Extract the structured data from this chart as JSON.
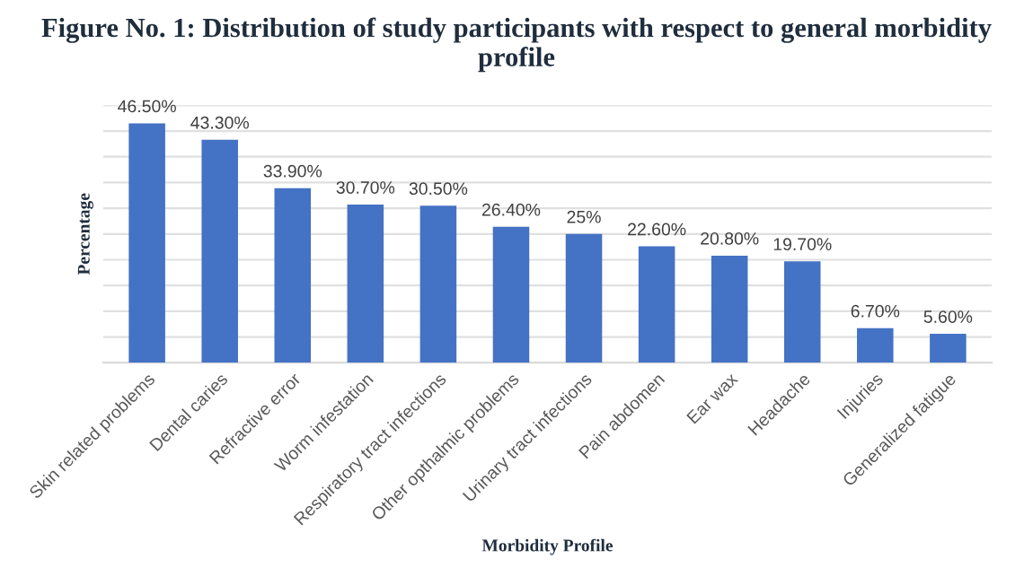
{
  "chart_data": {
    "type": "bar",
    "title": "Figure No. 1: Distribution of study participants with respect to general morbidity profile",
    "xlabel": "Morbidity Profile",
    "ylabel": "Percentage",
    "categories": [
      "Skin related problems",
      "Dental caries",
      "Refractive error",
      "Worm infestation",
      "Respiratory tract infections",
      "Other opthalmic problems",
      "Urinary tract infections",
      "Pain abdomen",
      "Ear wax",
      "Headache",
      "Injuries",
      "Generalized fatigue"
    ],
    "values": [
      46.5,
      43.3,
      33.9,
      30.7,
      30.5,
      26.4,
      25,
      22.6,
      20.8,
      19.7,
      6.7,
      5.6
    ],
    "value_labels": [
      "46.50%",
      "43.30%",
      "33.90%",
      "30.70%",
      "30.50%",
      "26.40%",
      "25%",
      "22.60%",
      "20.80%",
      "19.70%",
      "6.70%",
      "5.60%"
    ],
    "color": "#4472c4",
    "ylim": [
      0,
      50
    ],
    "yticks": [
      {
        "value": 0,
        "label": null
      },
      {
        "value": 5,
        "label": null
      },
      {
        "value": 10,
        "label": null
      },
      {
        "value": 15,
        "label": null
      },
      {
        "value": 20,
        "label": null
      },
      {
        "value": 25,
        "label": null
      },
      {
        "value": 30,
        "label": null
      },
      {
        "value": 35,
        "label": null
      },
      {
        "value": 40,
        "label": null
      },
      {
        "value": 45,
        "label": null
      },
      {
        "value": 50,
        "label": null
      }
    ],
    "tick_labels": "x",
    "grid": "y",
    "legend": false
  }
}
